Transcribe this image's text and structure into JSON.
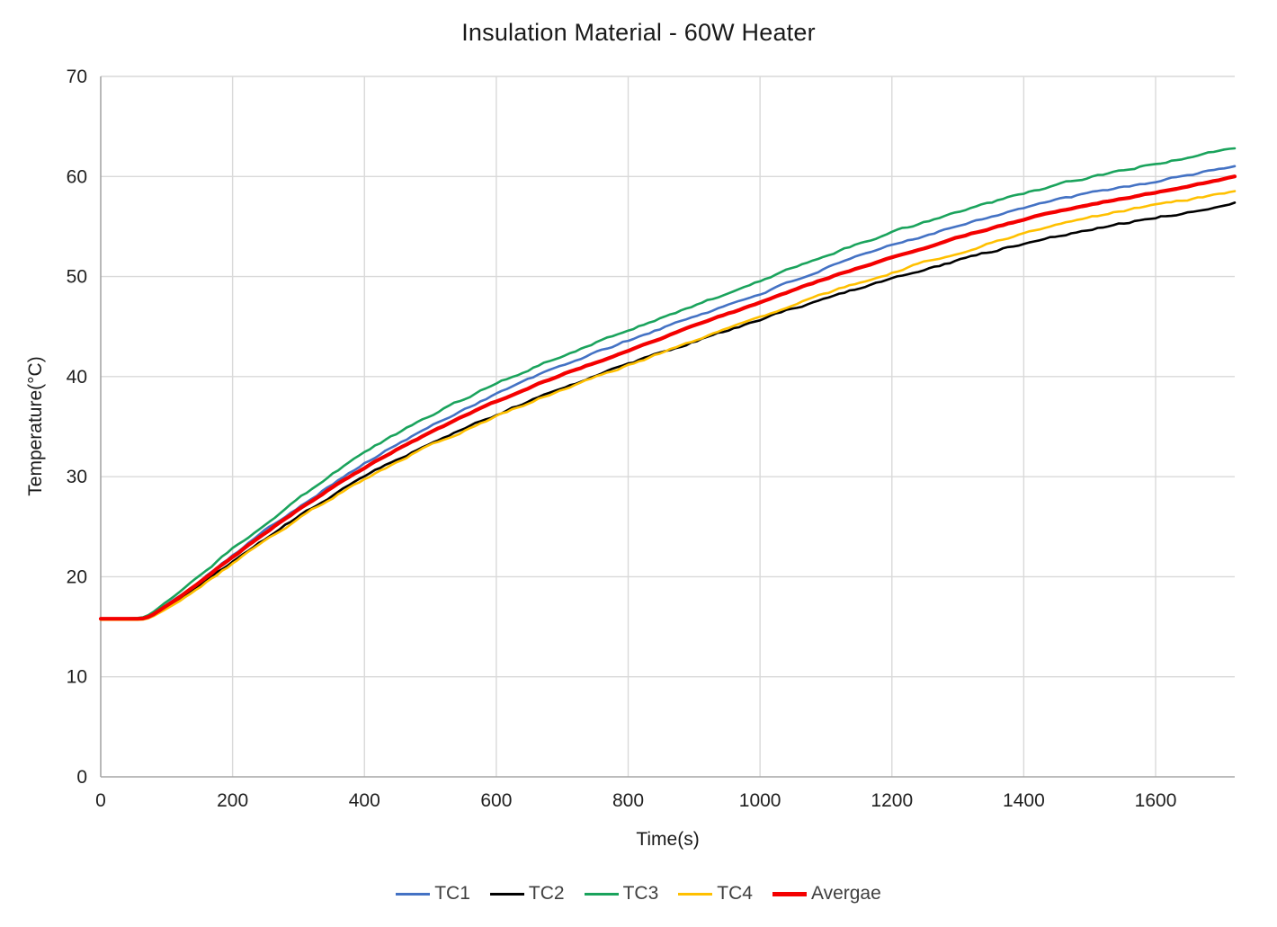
{
  "chart_data": {
    "type": "line",
    "title": "Insulation Material - 60W Heater",
    "xlabel": "Time(s)",
    "ylabel": "Temperature(°C)",
    "xlim": [
      0,
      1720
    ],
    "ylim": [
      0,
      70
    ],
    "x_ticks": [
      0,
      200,
      400,
      600,
      800,
      1000,
      1200,
      1400,
      1600
    ],
    "y_ticks": [
      0,
      10,
      20,
      30,
      40,
      50,
      60,
      70
    ],
    "grid": true,
    "legend_position": "bottom",
    "x": [
      0,
      60,
      100,
      200,
      300,
      400,
      500,
      600,
      700,
      800,
      900,
      1000,
      1100,
      1200,
      1300,
      1400,
      1500,
      1600,
      1700,
      1720
    ],
    "series": [
      {
        "name": "TC1",
        "color": "#4472C4",
        "width": 2.6,
        "values": [
          15.8,
          15.8,
          17.2,
          22.2,
          27.0,
          31.3,
          35.0,
          38.3,
          41.1,
          43.6,
          46.0,
          48.3,
          50.8,
          53.1,
          55.1,
          56.9,
          58.3,
          59.5,
          60.8,
          61.1
        ]
      },
      {
        "name": "TC2",
        "color": "#000000",
        "width": 2.6,
        "values": [
          15.8,
          15.8,
          17.0,
          21.5,
          26.0,
          30.0,
          33.3,
          36.2,
          38.8,
          41.2,
          43.5,
          45.7,
          47.8,
          49.8,
          51.6,
          53.3,
          54.7,
          55.9,
          57.1,
          57.5
        ]
      },
      {
        "name": "TC3",
        "color": "#1AA35C",
        "width": 2.6,
        "values": [
          15.8,
          15.9,
          17.5,
          22.8,
          27.8,
          32.4,
          36.1,
          39.3,
          42.1,
          44.6,
          47.1,
          49.6,
          52.1,
          54.4,
          56.4,
          58.3,
          59.9,
          61.3,
          62.6,
          62.9
        ]
      },
      {
        "name": "TC4",
        "color": "#FFC000",
        "width": 2.6,
        "values": [
          15.7,
          15.7,
          16.8,
          21.3,
          25.8,
          29.8,
          33.1,
          36.0,
          38.7,
          41.1,
          43.6,
          46.0,
          48.3,
          50.4,
          52.4,
          54.3,
          55.9,
          57.1,
          58.3,
          58.6
        ]
      },
      {
        "name": "Avergae",
        "color": "#F40000",
        "width": 4.2,
        "values": [
          15.8,
          15.8,
          17.1,
          22.0,
          26.7,
          30.9,
          34.4,
          37.5,
          40.2,
          42.6,
          45.1,
          47.4,
          49.8,
          51.9,
          53.9,
          55.7,
          57.2,
          58.4,
          59.7,
          60.0
        ]
      }
    ]
  },
  "colors": {
    "grid": "#D9D9D9",
    "axis": "#A6A6A6",
    "tick_text": "#1f1f1f",
    "legend_text": "#3f3f3f"
  }
}
